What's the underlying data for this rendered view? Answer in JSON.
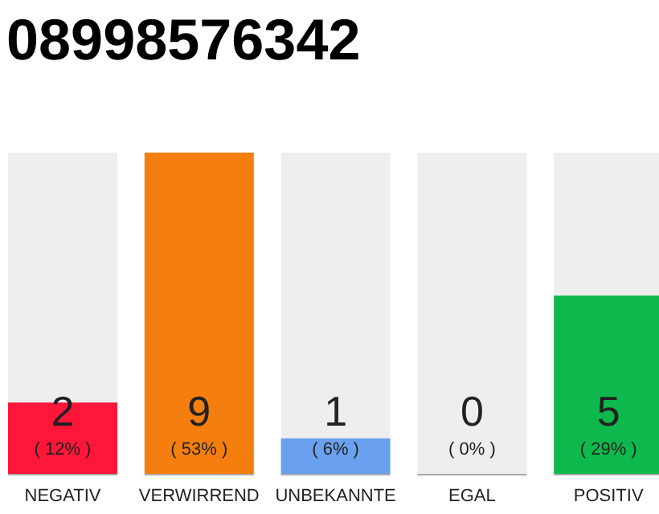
{
  "chart_data": {
    "type": "bar",
    "title": "08998576342",
    "categories": [
      "NEGATIV",
      "VERWIRREND",
      "UNBEKANNTE",
      "EGAL",
      "POSITIV"
    ],
    "stacked": true,
    "series": [
      {
        "values": [
          2,
          9,
          1,
          0,
          5
        ],
        "colors": [
          "#ff1639",
          "#f47e0e",
          "#6aa0ee",
          "#999999",
          "#0db84c"
        ],
        "value_labels": [
          "2",
          "9",
          "1",
          null,
          "5"
        ]
      },
      {
        "values": [
          7,
          0,
          8,
          9,
          4
        ],
        "color": "#eeeeee"
      }
    ],
    "annotations": [
      "( 12% )",
      "( 53% )",
      "( 6% )",
      "( 0% )",
      "( 29% )",
      {
        "text": "0",
        "x": "EGAL",
        "y": 0
      }
    ]
  }
}
